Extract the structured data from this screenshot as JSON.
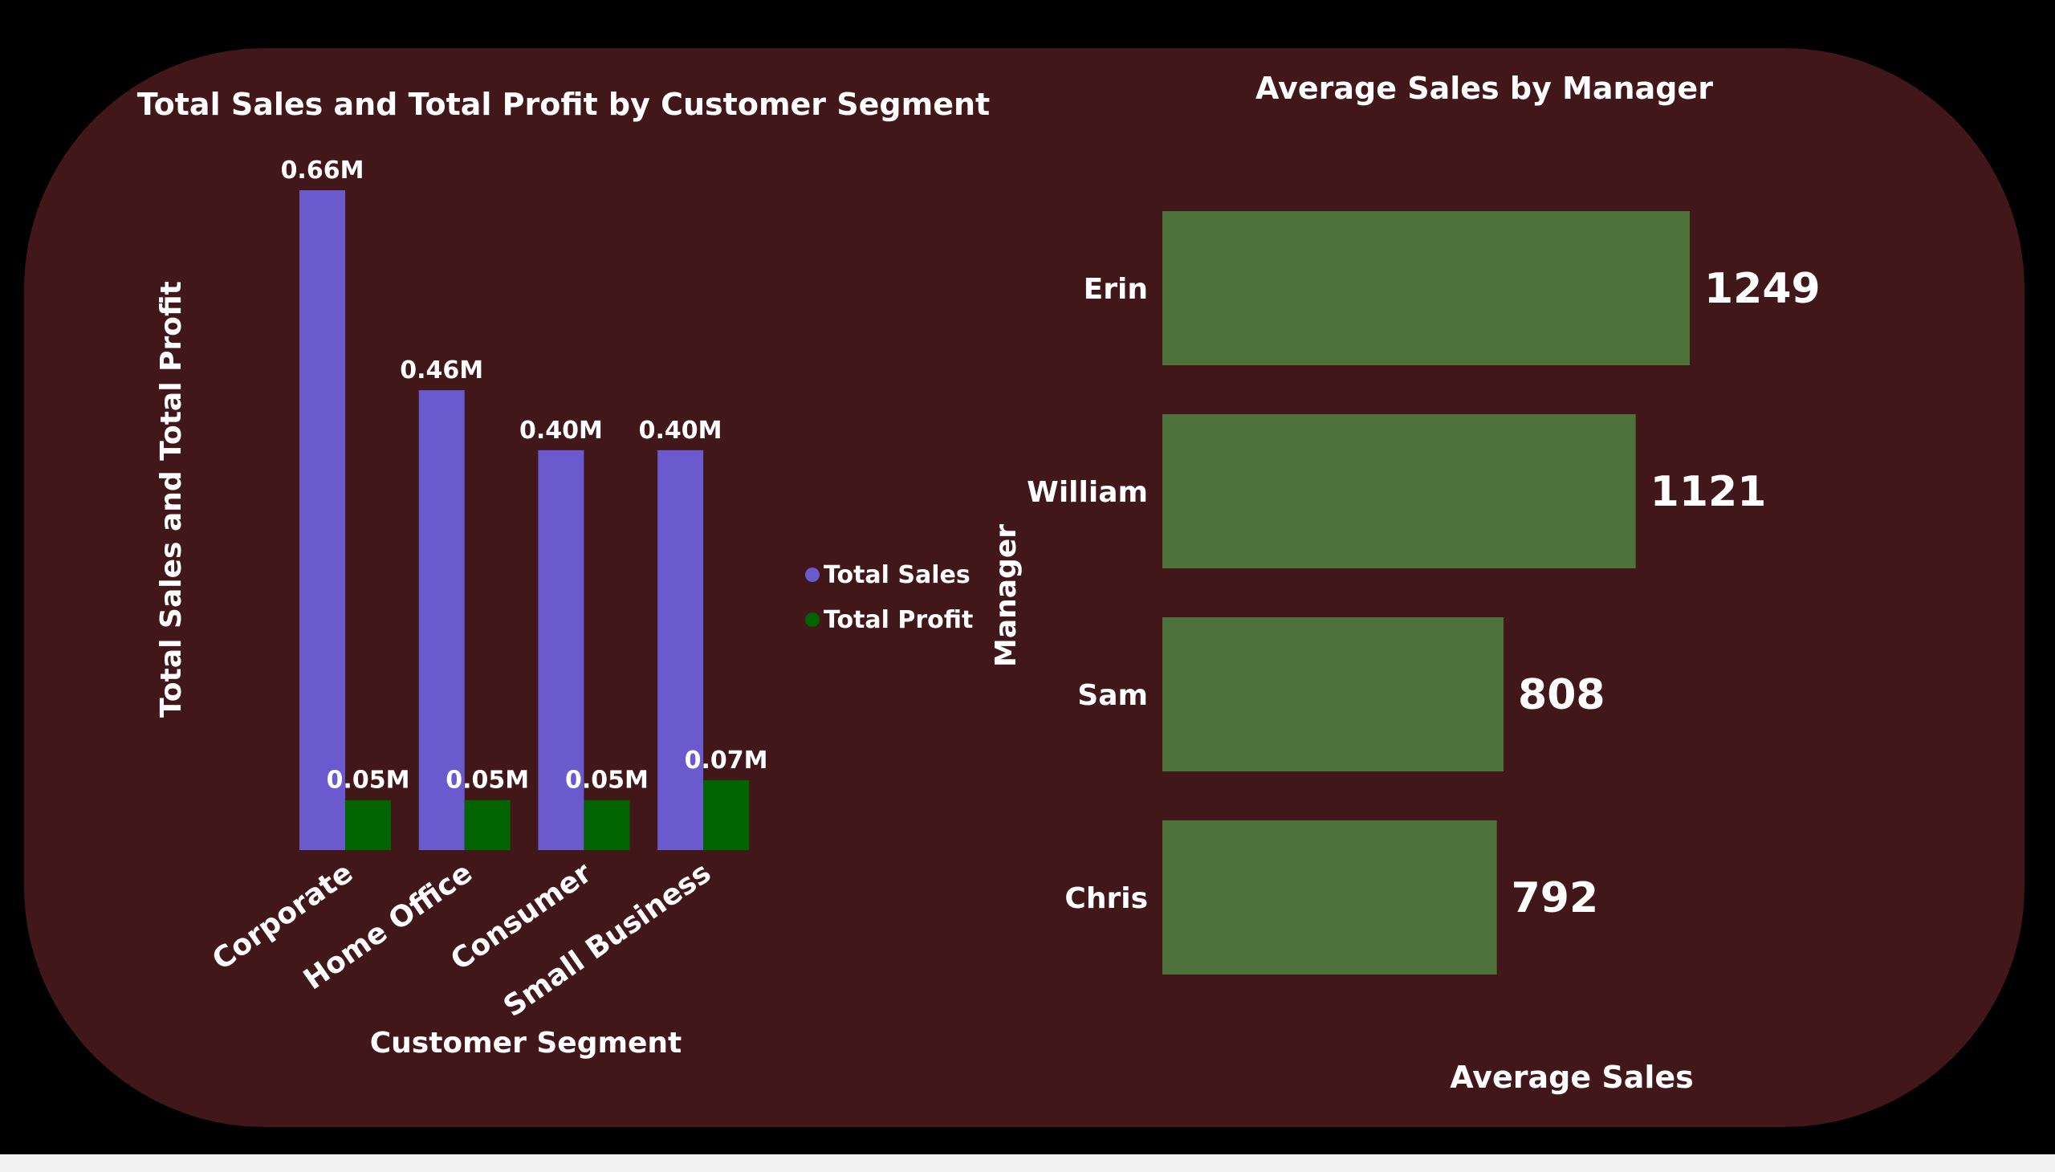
{
  "colors": {
    "background": "#000000",
    "panel": "#421719",
    "total_sales": "#6a5acd",
    "total_profit": "#006400",
    "avg_sales_bar": "#4d723b",
    "text": "#ffffff"
  },
  "chart_data": [
    {
      "type": "bar",
      "title": "Total Sales and Total Profit by Customer Segment",
      "xlabel": "Customer Segment",
      "ylabel": "Total Sales and Total Profit",
      "categories": [
        "Corporate",
        "Home Office",
        "Consumer",
        "Small Business"
      ],
      "series": [
        {
          "name": "Total Sales",
          "values": [
            0.66,
            0.46,
            0.4,
            0.4
          ],
          "labels": [
            "0.66M",
            "0.46M",
            "0.40M",
            "0.40M"
          ]
        },
        {
          "name": "Total Profit",
          "values": [
            0.05,
            0.05,
            0.05,
            0.07
          ],
          "labels": [
            "0.05M",
            "0.05M",
            "0.05M",
            "0.07M"
          ]
        }
      ],
      "ylim": [
        0,
        0.66
      ],
      "legend": "right",
      "grid": false
    },
    {
      "type": "bar",
      "orientation": "horizontal",
      "title": "Average Sales by Manager",
      "xlabel": "Average Sales",
      "ylabel": "Manager",
      "categories": [
        "Erin",
        "William",
        "Sam",
        "Chris"
      ],
      "values": [
        1249,
        1121,
        808,
        792
      ],
      "labels": [
        "1249",
        "1121",
        "808",
        "792"
      ],
      "xlim": [
        0,
        1249
      ],
      "grid": false
    }
  ]
}
